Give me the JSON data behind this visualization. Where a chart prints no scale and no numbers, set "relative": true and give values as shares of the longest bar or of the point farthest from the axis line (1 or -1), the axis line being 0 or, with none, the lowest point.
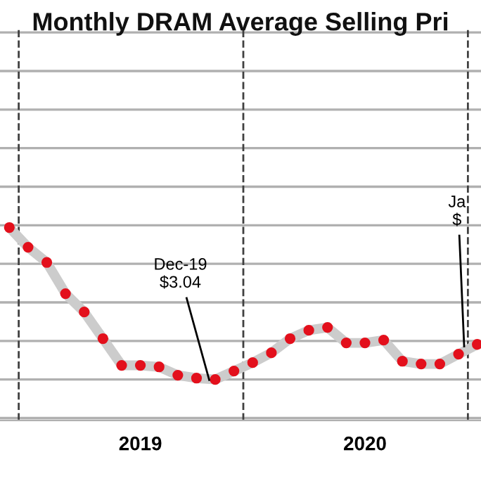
{
  "chart_data": {
    "type": "line",
    "title": "Monthly DRAM Average Selling Pri",
    "relative": true,
    "categories": [
      null,
      null,
      null,
      null,
      null,
      null,
      null,
      "2019",
      null,
      null,
      null,
      null,
      null,
      null,
      null,
      null,
      null,
      null,
      null,
      "2020",
      null,
      null,
      null,
      null,
      null,
      null
    ],
    "series": [
      {
        "color": "#e3101c",
        "values": [
          1.0,
          0.87,
          0.77,
          0.565,
          0.444,
          0.269,
          0.093,
          0.093,
          0.083,
          0.028,
          0.009,
          0,
          0.056,
          0.111,
          0.176,
          0.269,
          0.324,
          0.343,
          0.241,
          0.241,
          0.259,
          0.12,
          0.102,
          0.102,
          0.167,
          0.231
        ]
      }
    ],
    "tick_labels": "x",
    "grid": "y",
    "marker": "circle",
    "line_style": "solid",
    "annotations": [
      "Dec-19\n$3.04",
      "Ja\n$"
    ]
  }
}
